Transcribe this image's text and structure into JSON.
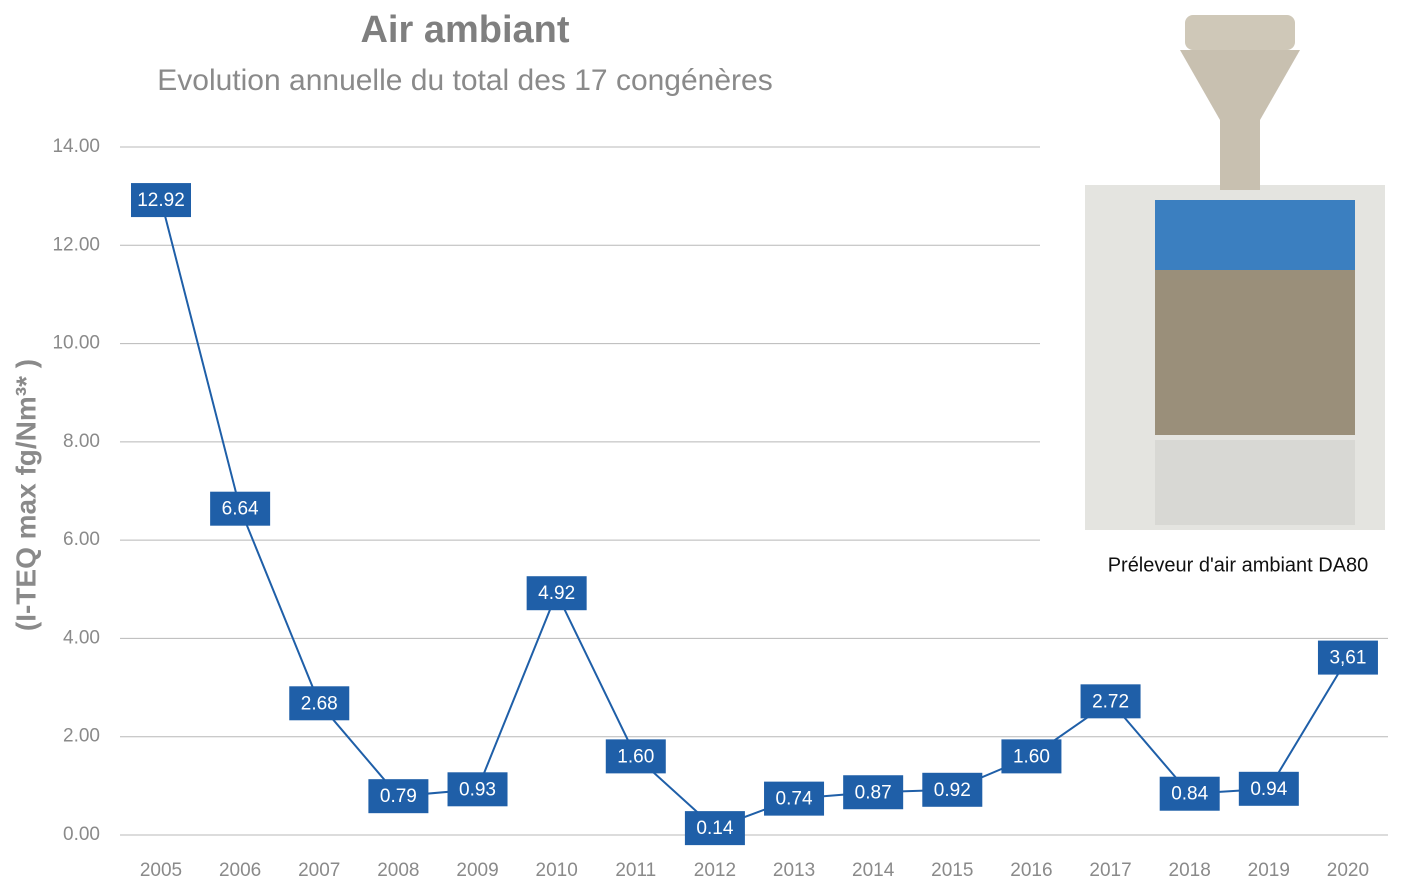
{
  "chart_data": {
    "type": "line",
    "title": "Air ambiant",
    "subtitle": "Evolution annuelle du total des 17 congénères",
    "y_axis_label": "(I-TEQ max fg/Nm³* )",
    "image_caption": "Préleveur d'air ambiant DA80",
    "categories": [
      "2005",
      "2006",
      "2007",
      "2008",
      "2009",
      "2010",
      "2011",
      "2012",
      "2013",
      "2014",
      "2015",
      "2016",
      "2017",
      "2018",
      "2019",
      "2020"
    ],
    "series": [
      {
        "name": "Total des 17 congénères",
        "color": "#1f5fa8",
        "values": [
          12.92,
          6.64,
          2.68,
          0.79,
          0.93,
          4.92,
          1.6,
          0.14,
          0.74,
          0.87,
          0.92,
          1.6,
          2.72,
          0.84,
          0.94,
          3.61
        ],
        "value_labels": [
          "12.92",
          "6.64",
          "2.68",
          "0.79",
          "0.93",
          "4.92",
          "1.60",
          "0.14",
          "0.74",
          "0.87",
          "0.92",
          "1.60",
          "2.72",
          "0.84",
          "0.94",
          "3,61"
        ]
      }
    ],
    "ylim": [
      0,
      14
    ],
    "yticks": [
      {
        "value": 0,
        "label": "0.00"
      },
      {
        "value": 2,
        "label": "2.00"
      },
      {
        "value": 4,
        "label": "4.00"
      },
      {
        "value": 6,
        "label": "6.00"
      },
      {
        "value": 8,
        "label": "8.00"
      },
      {
        "value": 10,
        "label": "10.00"
      },
      {
        "value": 12,
        "label": "12.00"
      },
      {
        "value": 14,
        "label": "14.00"
      }
    ],
    "grid": true
  }
}
